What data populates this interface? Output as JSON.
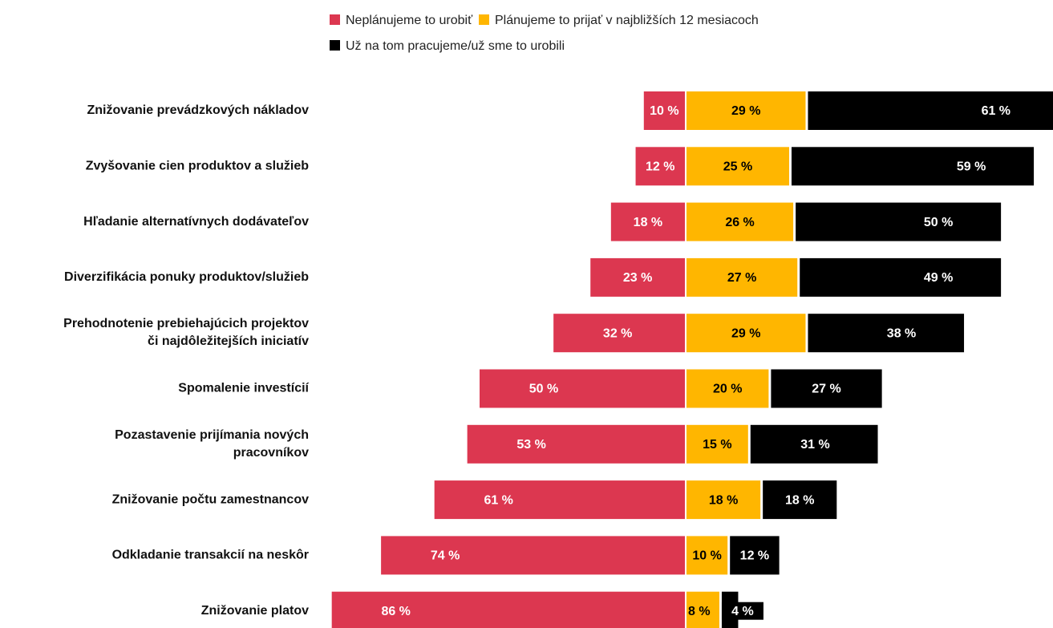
{
  "chart_data": {
    "type": "diverging_bar",
    "categories": [
      "Znižovanie prevádzkových nákladov",
      "Zvyšovanie cien produktov a služieb",
      "Hľadanie alternatívnych dodávateľov",
      "Diverzifikácia ponuky produktov/služieb",
      "Prehodnotenie prebiehajúcich projektov\nči najdôležitejších iniciatív",
      "Spomalenie investícií",
      "Pozastavenie prijímania nových\npracovníkov",
      "Znižovanie počtu zamestnancov",
      "Odkladanie transakcií na neskôr",
      "Znižovanie platov"
    ],
    "series": [
      {
        "name": "Neplánujeme to urobiť",
        "color": "#dc3750",
        "values": [
          10,
          12,
          18,
          23,
          32,
          50,
          53,
          61,
          74,
          86
        ],
        "value_labels": [
          "10 %",
          "12 %",
          "18 %",
          "23 %",
          "32 %",
          "50 %",
          "53 %",
          "61 %",
          "74 %",
          "86 %"
        ]
      },
      {
        "name": "Plánujeme to prijať v najbližších 12 mesiacoch",
        "color": "#ffb600",
        "values": [
          29,
          25,
          26,
          27,
          29,
          20,
          15,
          18,
          10,
          8
        ],
        "value_labels": [
          "29 %",
          "25 %",
          "26 %",
          "27 %",
          "29 %",
          "20 %",
          "15 %",
          "18 %",
          "10 %",
          "8 %"
        ]
      },
      {
        "name": "Už na tom pracujeme/už sme to urobili",
        "color": "#000000",
        "values": [
          61,
          59,
          50,
          49,
          38,
          27,
          31,
          18,
          12,
          4
        ],
        "value_labels": [
          "61 %",
          "59 %",
          "50 %",
          "49 %",
          "38 %",
          "27 %",
          "31 %",
          "18 %",
          "12 %",
          "4 %"
        ]
      }
    ]
  }
}
